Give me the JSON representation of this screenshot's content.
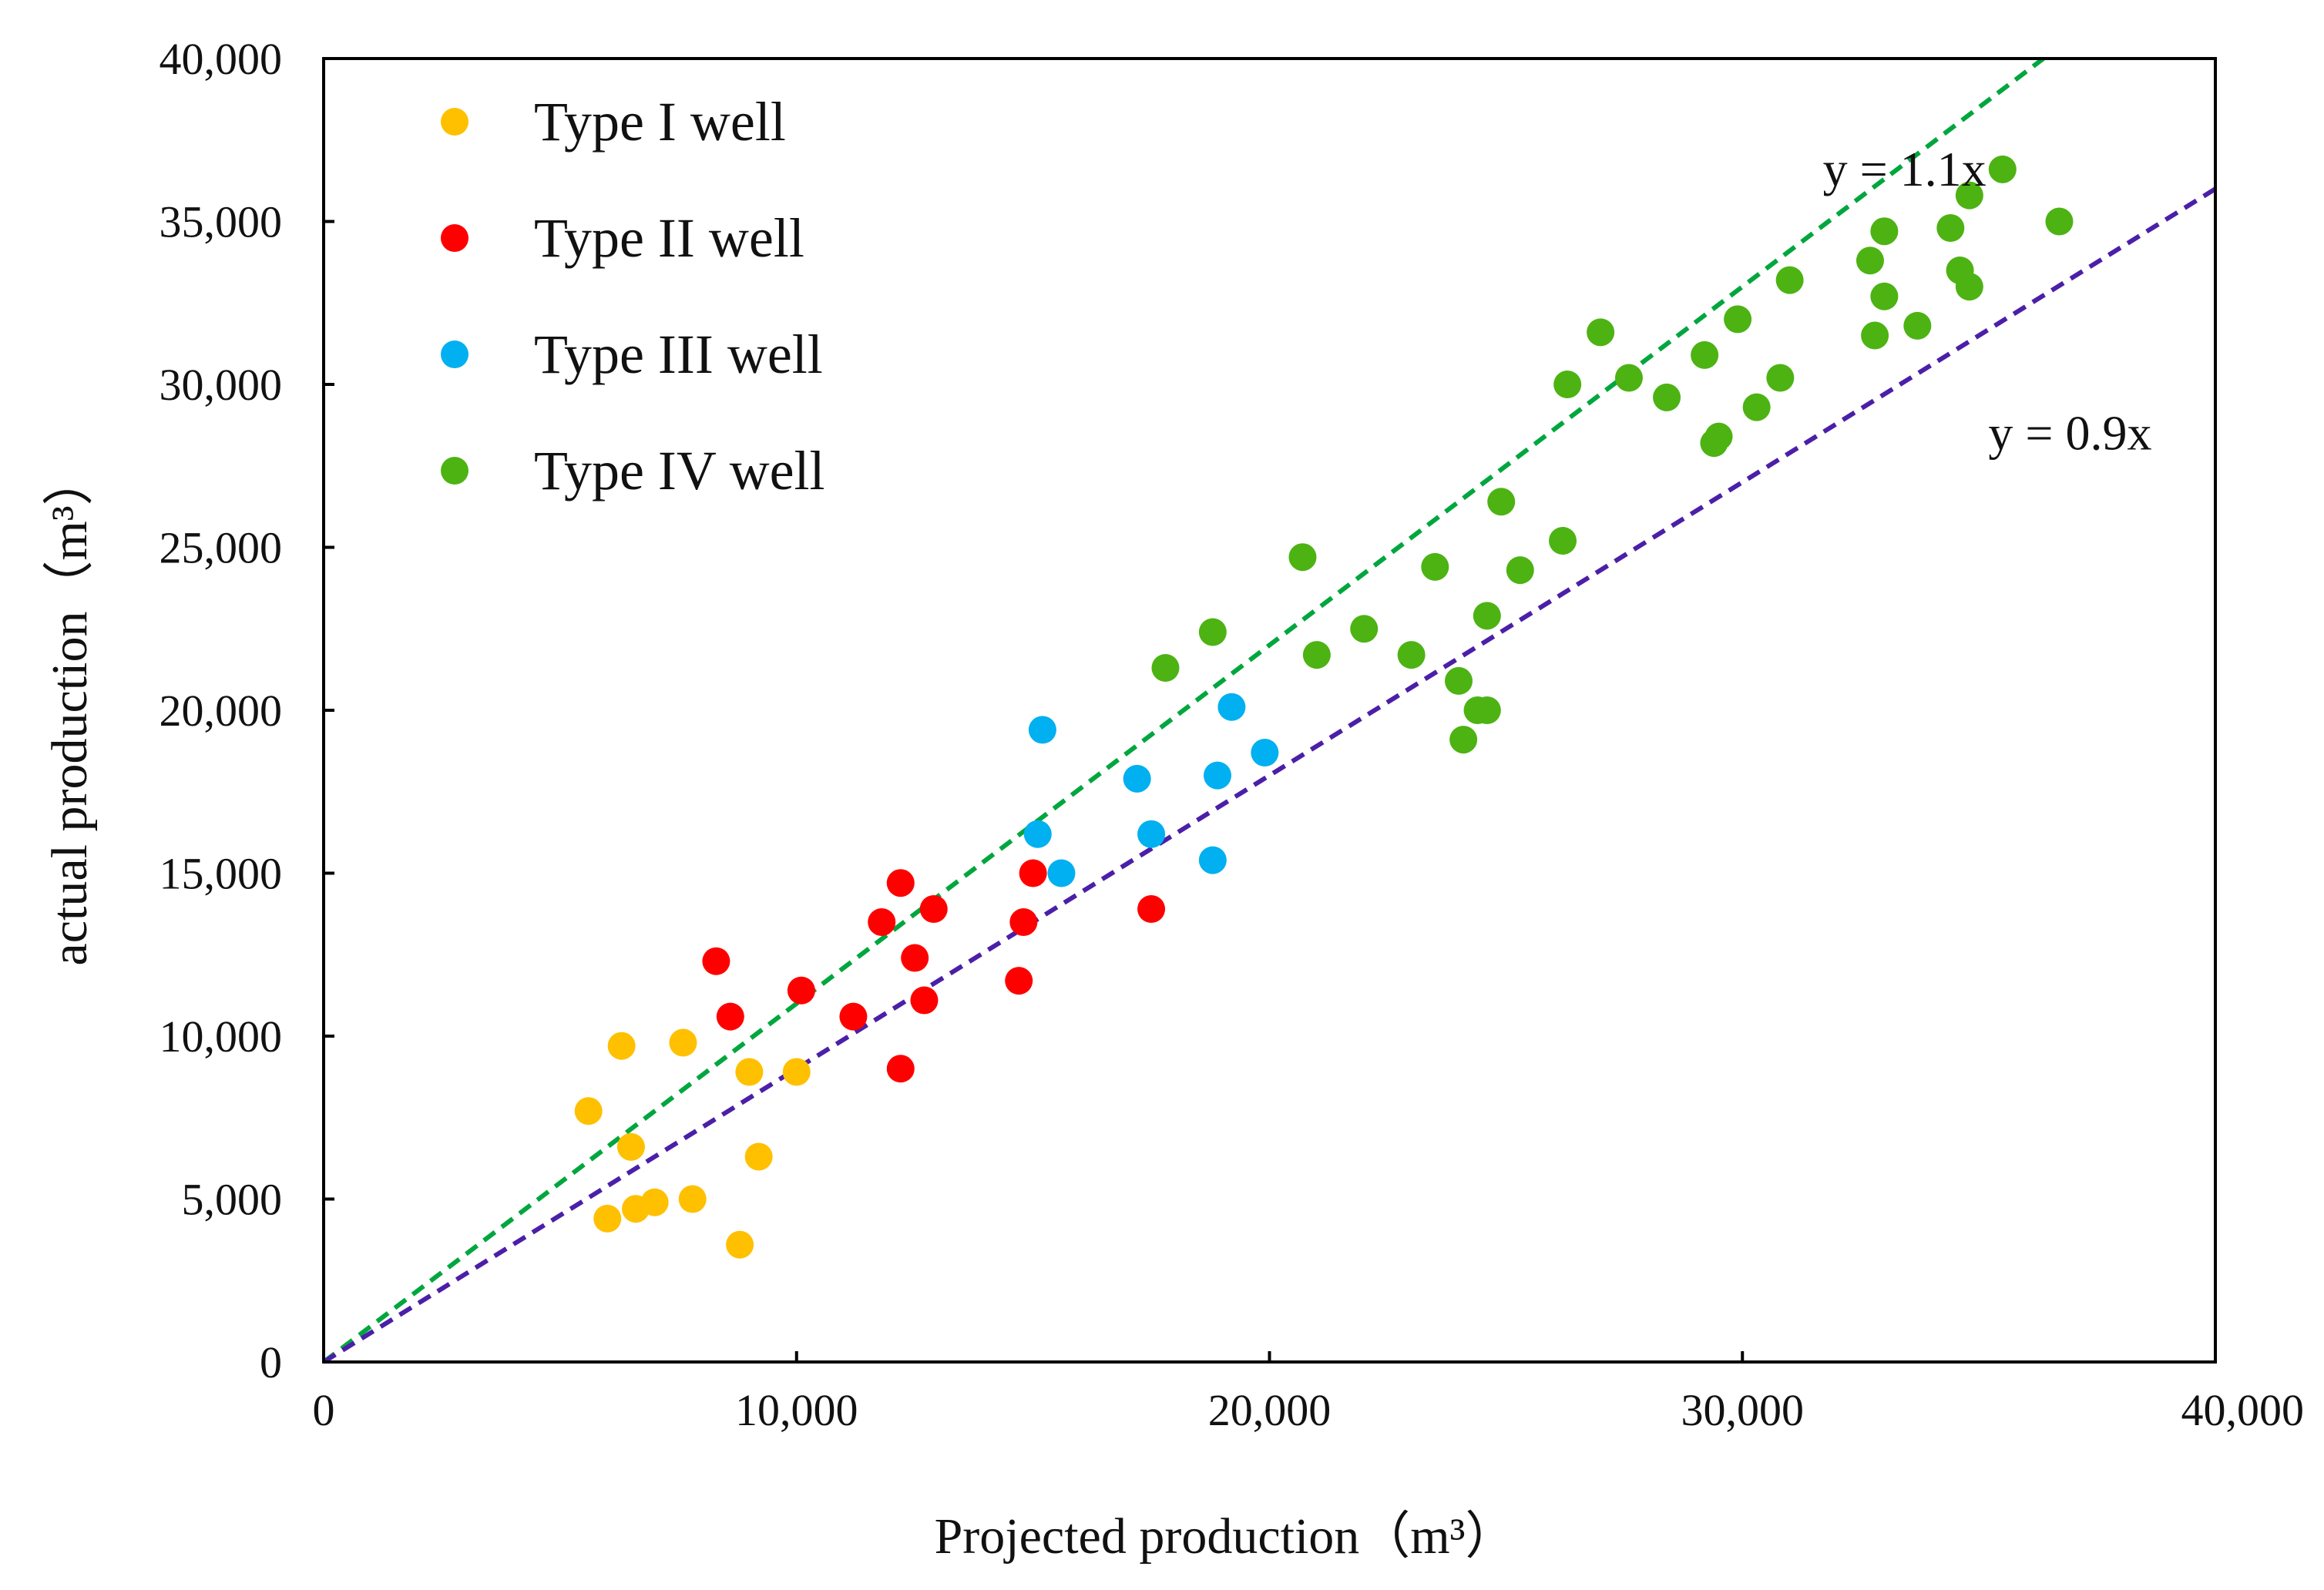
{
  "chart_data": {
    "type": "scatter",
    "xlabel": "Projected production（m³）",
    "ylabel": "actual production（m³）",
    "xlim": [
      0,
      40000
    ],
    "ylim": [
      0,
      40000
    ],
    "xticks": [
      "0",
      "10,000",
      "20,000",
      "30,000",
      "40,000"
    ],
    "yticks": [
      "0",
      "5,000",
      "10,000",
      "15,000",
      "20,000",
      "25,000",
      "30,000",
      "35,000",
      "40,000"
    ],
    "grid": false,
    "legend_position": "top-left",
    "series": [
      {
        "name": "Type I well",
        "color": "#FFC000",
        "points": [
          [
            5600,
            7700
          ],
          [
            6300,
            9700
          ],
          [
            6500,
            6600
          ],
          [
            6000,
            4400
          ],
          [
            6600,
            4700
          ],
          [
            7000,
            4900
          ],
          [
            7600,
            9800
          ],
          [
            7800,
            5000
          ],
          [
            8800,
            3600
          ],
          [
            9000,
            8900
          ],
          [
            9200,
            6300
          ],
          [
            10000,
            8900
          ]
        ]
      },
      {
        "name": "Type II well",
        "color": "#FF0000",
        "points": [
          [
            8300,
            12300
          ],
          [
            8600,
            10600
          ],
          [
            10100,
            11400
          ],
          [
            11200,
            10600
          ],
          [
            11800,
            13500
          ],
          [
            12200,
            14700
          ],
          [
            12200,
            9000
          ],
          [
            12500,
            12400
          ],
          [
            12700,
            11100
          ],
          [
            12900,
            13900
          ],
          [
            14700,
            11700
          ],
          [
            14800,
            13500
          ],
          [
            15000,
            15000
          ],
          [
            17500,
            13900
          ]
        ]
      },
      {
        "name": "Type III well",
        "color": "#00B0F0",
        "points": [
          [
            15100,
            16200
          ],
          [
            15200,
            19400
          ],
          [
            15600,
            15000
          ],
          [
            17200,
            17900
          ],
          [
            17500,
            16200
          ],
          [
            18800,
            15400
          ],
          [
            18900,
            18000
          ],
          [
            19200,
            20100
          ],
          [
            19900,
            18700
          ]
        ]
      },
      {
        "name": "Type IV well",
        "color": "#4CB313",
        "points": [
          [
            17800,
            21300
          ],
          [
            18800,
            22400
          ],
          [
            20700,
            24700
          ],
          [
            21000,
            21700
          ],
          [
            22000,
            22500
          ],
          [
            23000,
            21700
          ],
          [
            23500,
            24400
          ],
          [
            24000,
            20900
          ],
          [
            24100,
            19100
          ],
          [
            24400,
            20000
          ],
          [
            24600,
            20000
          ],
          [
            24600,
            22900
          ],
          [
            24900,
            26400
          ],
          [
            25300,
            24300
          ],
          [
            26200,
            25200
          ],
          [
            26300,
            30000
          ],
          [
            27000,
            31600
          ],
          [
            27600,
            30200
          ],
          [
            28400,
            29600
          ],
          [
            29200,
            30900
          ],
          [
            29400,
            28200
          ],
          [
            29500,
            28400
          ],
          [
            29900,
            32000
          ],
          [
            30300,
            29300
          ],
          [
            30800,
            30200
          ],
          [
            31000,
            33200
          ],
          [
            32700,
            33800
          ],
          [
            32800,
            31500
          ],
          [
            33000,
            34700
          ],
          [
            33000,
            32700
          ],
          [
            33700,
            31800
          ],
          [
            34400,
            34800
          ],
          [
            34600,
            33500
          ],
          [
            34800,
            35800
          ],
          [
            34800,
            33000
          ],
          [
            35500,
            36600
          ],
          [
            36700,
            35000
          ]
        ]
      }
    ],
    "reference_lines": [
      {
        "label": "y = 1.1x",
        "slope": 1.1,
        "color": "#00A63E",
        "label_at": [
          31700,
          36100
        ]
      },
      {
        "label": "y = 0.9x",
        "slope": 0.9,
        "color": "#4B1FA8",
        "label_at": [
          35200,
          28000
        ]
      }
    ]
  }
}
